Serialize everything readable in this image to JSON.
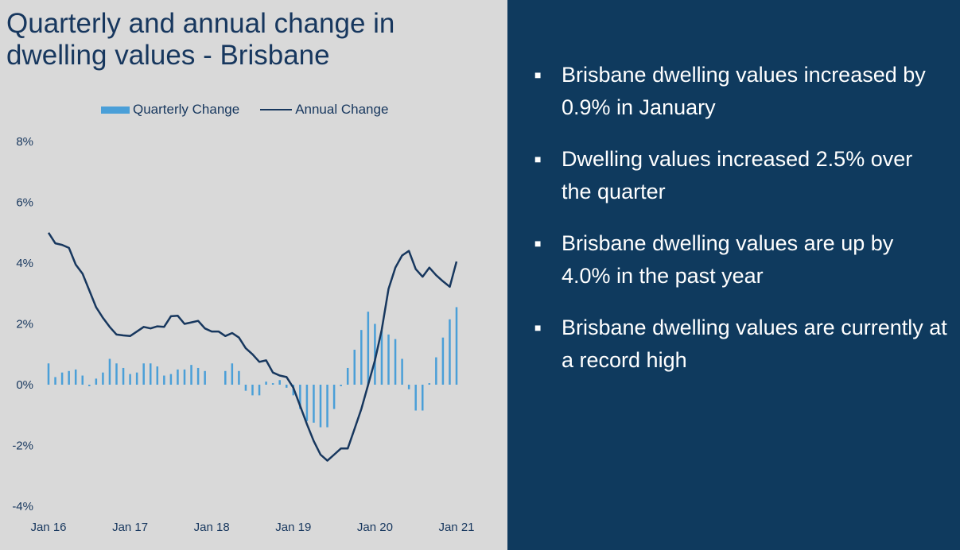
{
  "title": "Quarterly and annual change in dwelling values - Brisbane",
  "bullets": [
    "Brisbane dwelling values increased by 0.9% in January",
    "Dwelling values increased 2.5% over the quarter",
    "Brisbane dwelling values are up by 4.0% in the past year",
    "Brisbane dwelling values are currently at a record high"
  ],
  "bullet_marker": "■",
  "colors": {
    "bar": "#4a9fd8",
    "line": "#17375e",
    "right_bg": "#0f3a5e",
    "left_bg": "#d9d9d9"
  },
  "chart_data": {
    "type": "bar+line",
    "title": "",
    "legend": [
      "Quarterly Change",
      "Annual Change"
    ],
    "legend_position": "top",
    "y_tick_labels": [
      "8%",
      "6%",
      "4%",
      "2%",
      "0%",
      "-2%",
      "-4%"
    ],
    "y_ticks": [
      8,
      6,
      4,
      2,
      0,
      -2,
      -4
    ],
    "ylim": [
      -4,
      8
    ],
    "x_tick_labels": [
      "Jan 16",
      "Jan 17",
      "Jan 18",
      "Jan 19",
      "Jan 20",
      "Jan 21"
    ],
    "x_tick_index": [
      0,
      12,
      24,
      36,
      48,
      60
    ],
    "months": [
      "Jan 16",
      "Feb 16",
      "Mar 16",
      "Apr 16",
      "May 16",
      "Jun 16",
      "Jul 16",
      "Aug 16",
      "Sep 16",
      "Oct 16",
      "Nov 16",
      "Dec 16",
      "Jan 17",
      "Feb 17",
      "Mar 17",
      "Apr 17",
      "May 17",
      "Jun 17",
      "Jul 17",
      "Aug 17",
      "Sep 17",
      "Oct 17",
      "Nov 17",
      "Dec 17",
      "Jan 18",
      "Feb 18",
      "Mar 18",
      "Apr 18",
      "May 18",
      "Jun 18",
      "Jul 18",
      "Aug 18",
      "Sep 18",
      "Oct 18",
      "Nov 18",
      "Dec 18",
      "Jan 19",
      "Feb 19",
      "Mar 19",
      "Apr 19",
      "May 19",
      "Jun 19",
      "Jul 19",
      "Aug 19",
      "Sep 19",
      "Oct 19",
      "Nov 19",
      "Dec 19",
      "Jan 20",
      "Feb 20",
      "Mar 20",
      "Apr 20",
      "May 20",
      "Jun 20",
      "Jul 20",
      "Aug 20",
      "Sep 20",
      "Oct 20",
      "Nov 20",
      "Dec 20",
      "Jan 21"
    ],
    "series": [
      {
        "name": "Quarterly Change",
        "kind": "bar",
        "values": [
          0.7,
          0.25,
          0.4,
          0.45,
          0.5,
          0.3,
          -0.05,
          0.2,
          0.4,
          0.85,
          0.7,
          0.55,
          0.35,
          0.4,
          0.7,
          0.7,
          0.6,
          0.3,
          0.35,
          0.5,
          0.5,
          0.65,
          0.55,
          0.45,
          0.0,
          0.0,
          0.45,
          0.7,
          0.45,
          -0.2,
          -0.35,
          -0.35,
          0.1,
          0.05,
          0.15,
          -0.1,
          -0.35,
          -0.8,
          -1.2,
          -1.25,
          -1.4,
          -1.4,
          -0.8,
          -0.05,
          0.55,
          1.15,
          1.8,
          2.4,
          2.0,
          1.8,
          1.65,
          1.5,
          0.85,
          -0.15,
          -0.85,
          -0.85,
          0.05,
          0.9,
          1.55,
          2.15,
          2.55
        ]
      },
      {
        "name": "Annual Change",
        "kind": "line",
        "values": [
          5.0,
          4.65,
          4.6,
          4.5,
          3.95,
          3.65,
          3.1,
          2.55,
          2.2,
          1.9,
          1.65,
          1.62,
          1.6,
          1.75,
          1.9,
          1.85,
          1.92,
          1.9,
          2.25,
          2.27,
          2.0,
          2.05,
          2.1,
          1.85,
          1.75,
          1.75,
          1.6,
          1.7,
          1.55,
          1.2,
          1.0,
          0.75,
          0.8,
          0.4,
          0.3,
          0.25,
          -0.1,
          -0.7,
          -1.3,
          -1.85,
          -2.3,
          -2.5,
          -2.3,
          -2.1,
          -2.1,
          -1.45,
          -0.8,
          0.0,
          0.8,
          1.8,
          3.15,
          3.85,
          4.25,
          4.4,
          3.8,
          3.55,
          3.85,
          3.6,
          3.4,
          3.22,
          4.05
        ]
      }
    ]
  }
}
